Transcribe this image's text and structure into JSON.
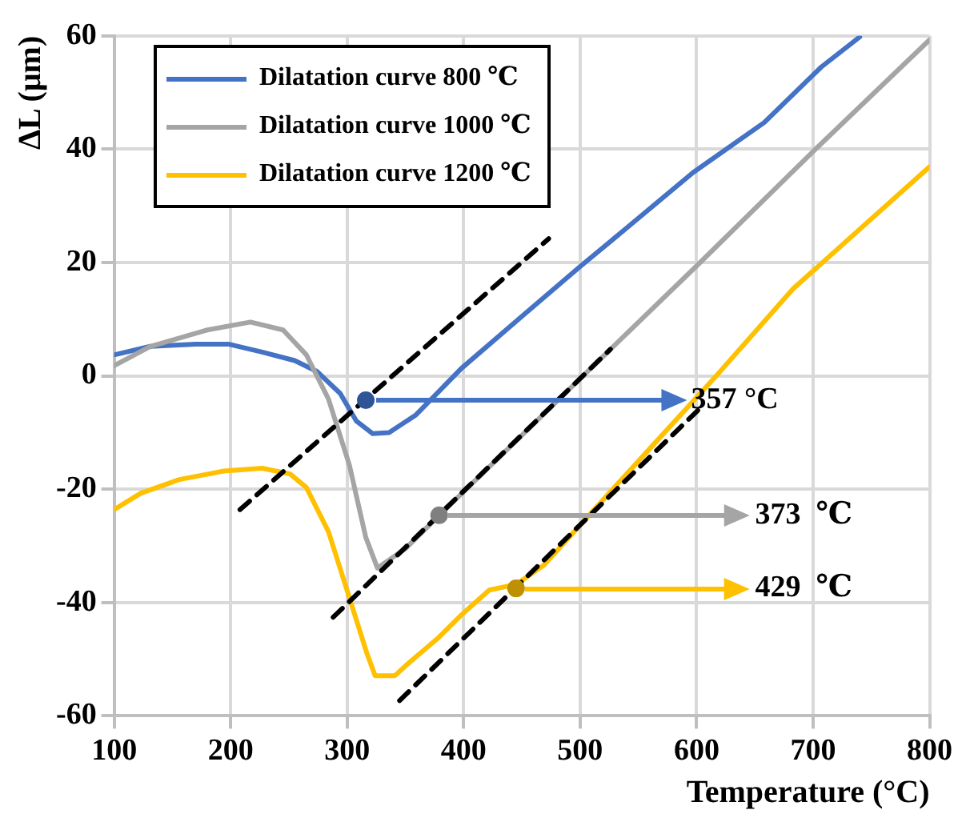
{
  "chart_data": {
    "type": "line",
    "xlabel": "Temperature (°C)",
    "ylabel": "ΔL (μm)",
    "xlim": [
      100,
      800
    ],
    "xticks": [
      100,
      200,
      300,
      400,
      500,
      600,
      700,
      800
    ],
    "ylim": [
      -60,
      60
    ],
    "yticks": [
      -60,
      -40,
      -20,
      0,
      20,
      40,
      60
    ],
    "grid": true,
    "legend": "top left",
    "marker": "none",
    "line_style": "solid",
    "series": [
      {
        "name": "Dilatation curve 800  ℃",
        "color": "#4472c4",
        "x": [
          100,
          131,
          170,
          198,
          227,
          255,
          274,
          294,
          308,
          322,
          336,
          359,
          398,
          450,
          500,
          540,
          597,
          658,
          707,
          740
        ],
        "values": [
          3.7,
          5.2,
          5.6,
          5.6,
          4.2,
          2.7,
          0.8,
          -3.1,
          -8.0,
          -10.2,
          -10.0,
          -6.9,
          1.3,
          10.5,
          19.3,
          26.1,
          35.9,
          44.7,
          54.5,
          59.8
        ]
      },
      {
        "name": "Dilatation curve 1000  ℃",
        "color": "#a5a5a5",
        "x": [
          100,
          131,
          180,
          217,
          245,
          265,
          284,
          302,
          316,
          326,
          350,
          379,
          450,
          500,
          600,
          701,
          800
        ],
        "values": [
          1.8,
          5.2,
          8.1,
          9.5,
          8.1,
          3.7,
          -4.1,
          -15.8,
          -28.5,
          -33.9,
          -30.5,
          -24.6,
          -10.5,
          -0.5,
          19.4,
          39.8,
          59.3
        ]
      },
      {
        "name": "Dilatation curve 1200  ℃",
        "color": "#ffc000",
        "x": [
          100,
          123,
          156,
          194,
          227,
          251,
          265,
          284,
          302,
          317,
          324,
          341,
          351,
          379,
          398,
          422,
          445,
          469,
          512,
          564,
          616,
          683,
          800
        ],
        "values": [
          -23.6,
          -20.7,
          -18.3,
          -16.8,
          -16.3,
          -17.3,
          -19.7,
          -27.5,
          -39.2,
          -49,
          -52.9,
          -52.9,
          -51,
          -46.1,
          -42.2,
          -37.8,
          -36.8,
          -33.4,
          -23.6,
          -11.9,
          -0.2,
          15.4,
          36.9
        ]
      },
      {
        "type": "line",
        "color": "#000000",
        "line_style": "dashed",
        "x": [
          208,
          473
        ],
        "values": [
          -23.6,
          24.2
        ]
      },
      {
        "type": "line",
        "color": "#000000",
        "line_style": "dashed",
        "x": [
          288,
          526
        ],
        "values": [
          -42.6,
          4.7
        ]
      },
      {
        "type": "line",
        "color": "#000000",
        "line_style": "dashed",
        "x": [
          345,
          601
        ],
        "values": [
          -57.3,
          -6.1
        ]
      },
      {
        "type": "scatter",
        "color": "#2f5597",
        "marker": "circle",
        "x": [
          316
        ],
        "values": [
          -4.3
        ]
      },
      {
        "type": "scatter",
        "color": "#7f7f7f",
        "marker": "circle",
        "x": [
          379
        ],
        "values": [
          -24.6
        ]
      },
      {
        "type": "scatter",
        "color": "#bf9000",
        "marker": "circle",
        "x": [
          445
        ],
        "values": [
          -37.5
        ]
      }
    ],
    "annotations": [
      {
        "text": "357 °C",
        "x": 316,
        "y": -4.3
      },
      {
        "text": "373  ℃",
        "x": 379,
        "y": -24.6
      },
      {
        "text": "429  ℃",
        "x": 445,
        "y": -37.5
      }
    ]
  }
}
